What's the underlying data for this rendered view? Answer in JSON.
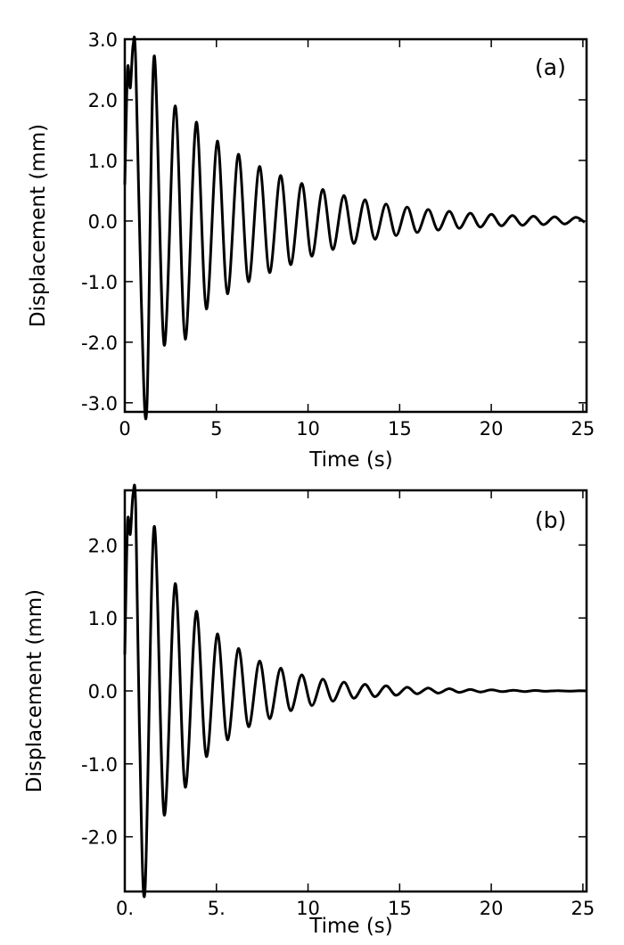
{
  "chart_data": [
    {
      "type": "line",
      "panel_label": "(a)",
      "xlabel": "Time (s)",
      "ylabel": "Displacement (mm)",
      "xlim": [
        0,
        25.2
      ],
      "ylim": [
        -3.15,
        3.0
      ],
      "xticks": [
        0,
        5,
        10,
        15,
        20,
        25
      ],
      "xtick_labels": [
        "0",
        "5",
        "10",
        "15",
        "20",
        "25"
      ],
      "yticks": [
        -3.0,
        -2.0,
        -1.0,
        0.0,
        1.0,
        2.0,
        3.0
      ],
      "ytick_labels": [
        "-3.0",
        "-2.0",
        "-1.0",
        "0.0",
        "1.0",
        "2.0",
        "3.0"
      ],
      "series": [
        {
          "name": "displacement",
          "x": [
            0,
            0.15,
            0.3,
            0.45,
            0.6,
            0.9,
            1.2,
            1.6,
            2.15,
            2.75,
            3.3,
            3.9,
            4.45,
            5.05,
            5.6,
            6.2,
            6.75,
            7.35,
            7.9,
            8.5,
            9.05,
            9.65,
            10.2,
            10.8,
            11.35,
            11.95,
            12.5,
            13.1,
            13.65,
            14.25,
            14.8,
            15.4,
            15.95,
            16.55,
            17.1,
            17.7,
            18.25,
            18.85,
            19.4,
            20.0,
            20.55,
            21.15,
            21.7,
            22.3,
            22.85,
            23.45,
            24.0,
            24.6,
            25.1
          ],
          "y": [
            0.6,
            2.5,
            2.2,
            2.9,
            2.6,
            -1.3,
            -3.1,
            2.72,
            -2.05,
            1.9,
            -1.95,
            1.63,
            -1.45,
            1.32,
            -1.2,
            1.1,
            -1.0,
            0.9,
            -0.85,
            0.75,
            -0.72,
            0.62,
            -0.58,
            0.52,
            -0.47,
            0.42,
            -0.37,
            0.35,
            -0.3,
            0.28,
            -0.24,
            0.23,
            -0.19,
            0.19,
            -0.15,
            0.16,
            -0.12,
            0.13,
            -0.1,
            0.11,
            -0.08,
            0.09,
            -0.07,
            0.08,
            -0.06,
            0.07,
            -0.05,
            0.06,
            -0.02
          ]
        }
      ]
    },
    {
      "type": "line",
      "panel_label": "(b)",
      "xlabel": "Time (s)",
      "ylabel": "Displacement (mm)",
      "xlim": [
        0,
        25.2
      ],
      "ylim": [
        -2.75,
        2.75
      ],
      "xticks": [
        0,
        5,
        10,
        15,
        20,
        25
      ],
      "xtick_labels": [
        "0.",
        "5.",
        "10",
        "15",
        "20",
        "25"
      ],
      "yticks": [
        -2.0,
        -1.0,
        0.0,
        1.0,
        2.0
      ],
      "ytick_labels": [
        "-2.0",
        "-1.0",
        "0.0",
        "1.0",
        "2.0"
      ],
      "series": [
        {
          "name": "displacement",
          "x": [
            0,
            0.15,
            0.3,
            0.45,
            0.6,
            0.8,
            1.1,
            1.6,
            2.15,
            2.75,
            3.3,
            3.9,
            4.45,
            5.05,
            5.6,
            6.2,
            6.75,
            7.35,
            7.9,
            8.5,
            9.05,
            9.65,
            10.2,
            10.8,
            11.35,
            11.95,
            12.5,
            13.1,
            13.65,
            14.25,
            14.8,
            15.4,
            15.95,
            16.55,
            17.1,
            17.7,
            18.25,
            18.85,
            19.4,
            20.0,
            20.6,
            21.2,
            21.8,
            22.4,
            23.0,
            23.6,
            24.2,
            24.8,
            25.2
          ],
          "y": [
            0.5,
            2.3,
            2.15,
            2.7,
            2.5,
            -0.5,
            -2.75,
            2.25,
            -1.7,
            1.47,
            -1.32,
            1.09,
            -0.9,
            0.78,
            -0.67,
            0.58,
            -0.49,
            0.41,
            -0.38,
            0.31,
            -0.27,
            0.22,
            -0.2,
            0.16,
            -0.14,
            0.12,
            -0.1,
            0.09,
            -0.08,
            0.07,
            -0.06,
            0.05,
            -0.04,
            0.04,
            -0.03,
            0.03,
            -0.02,
            0.02,
            -0.015,
            0.015,
            -0.01,
            0.01,
            -0.008,
            0.006,
            -0.005,
            0.004,
            -0.003,
            0.002,
            0.0
          ]
        }
      ]
    }
  ]
}
